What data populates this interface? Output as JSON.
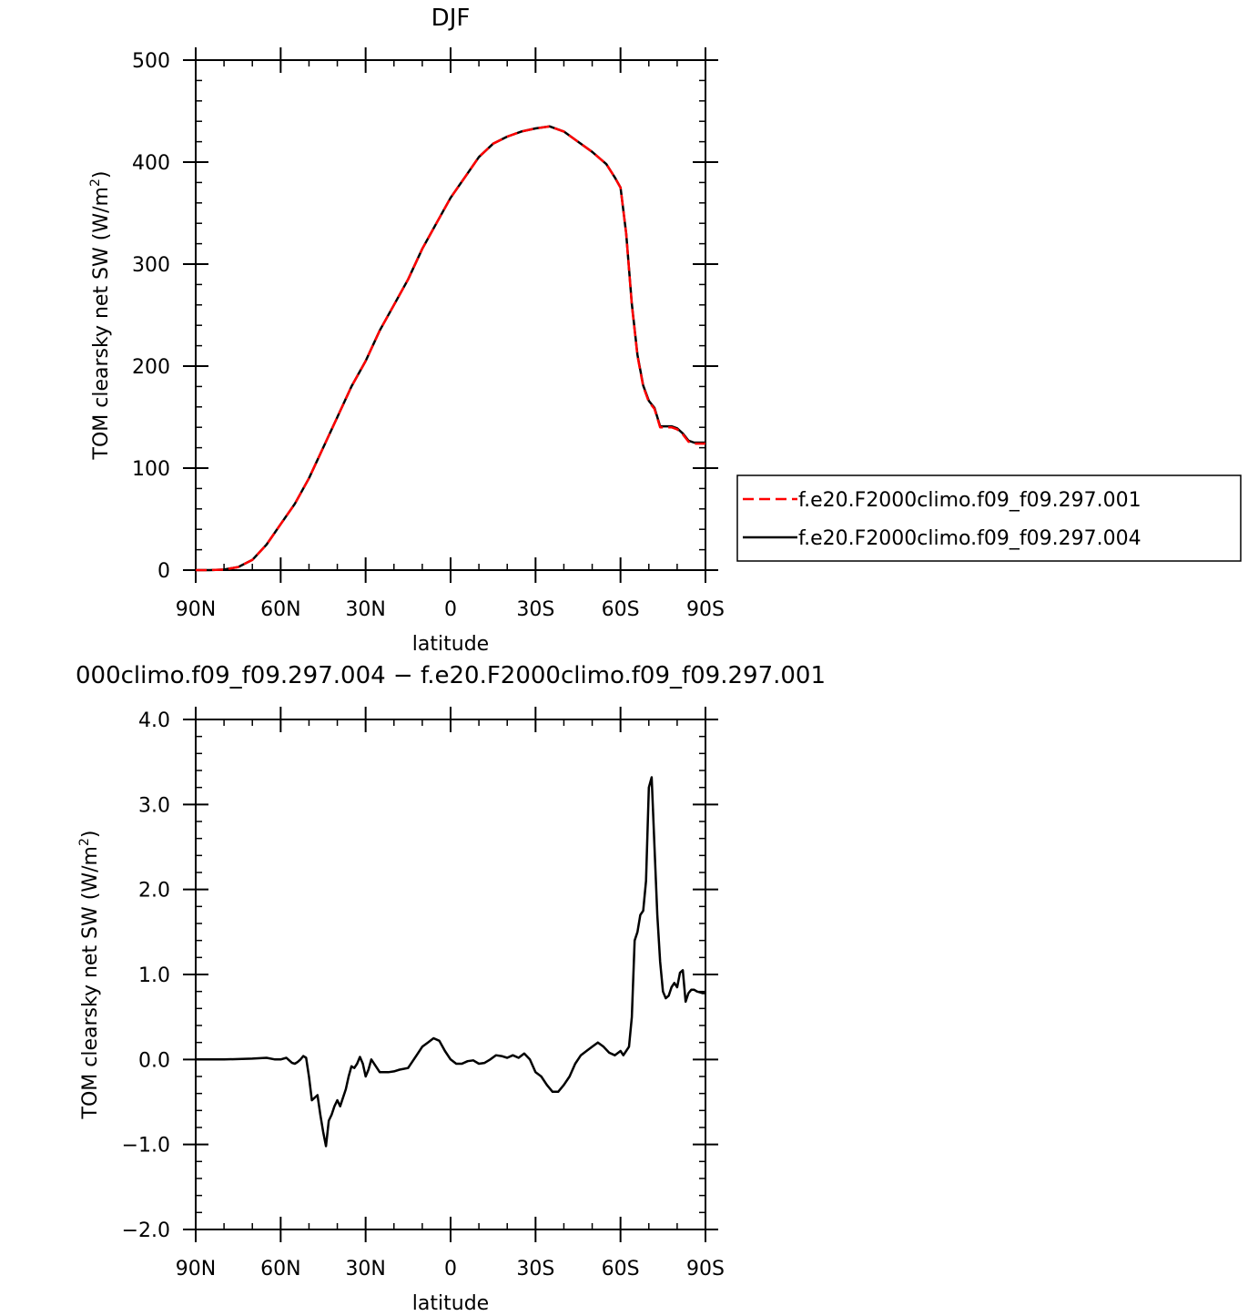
{
  "chart_data": [
    {
      "type": "line",
      "title": "DJF",
      "xlabel": "latitude",
      "ylabel": "TOM clearsky net SW (W/m",
      "ylabel_sup": "2",
      "ylabel_close": ")",
      "xlim": [
        90,
        -90
      ],
      "ylim": [
        0,
        500
      ],
      "x_ticks": [
        {
          "value": 90,
          "label": "90N"
        },
        {
          "value": 60,
          "label": "60N"
        },
        {
          "value": 30,
          "label": "30N"
        },
        {
          "value": 0,
          "label": "0"
        },
        {
          "value": -30,
          "label": "30S"
        },
        {
          "value": -60,
          "label": "60S"
        },
        {
          "value": -90,
          "label": "90S"
        }
      ],
      "y_ticks": [
        {
          "value": 0,
          "label": "0"
        },
        {
          "value": 100,
          "label": "100"
        },
        {
          "value": 200,
          "label": "200"
        },
        {
          "value": 300,
          "label": "300"
        },
        {
          "value": 400,
          "label": "400"
        },
        {
          "value": 500,
          "label": "500"
        }
      ],
      "legend_position": "right",
      "series": [
        {
          "name": "f.e20.F2000climo.f09_f09.297.001",
          "color": "#ff0000",
          "style": "dashed",
          "x": [
            90,
            85,
            80,
            75,
            70,
            65,
            60,
            55,
            50,
            45,
            40,
            35,
            30,
            25,
            20,
            15,
            10,
            5,
            0,
            -5,
            -10,
            -15,
            -20,
            -25,
            -30,
            -35,
            -40,
            -45,
            -50,
            -55,
            -58,
            -60,
            -62,
            -64,
            -66,
            -68,
            -70,
            -72,
            -74,
            -76,
            -78,
            -80,
            -82,
            -84,
            -86,
            -88,
            -90
          ],
          "values": [
            0,
            0,
            0.5,
            3,
            10,
            25,
            45,
            65,
            90,
            120,
            150,
            180,
            205,
            235,
            260,
            285,
            315,
            340,
            365,
            385,
            405,
            418,
            425,
            430,
            433,
            435,
            430,
            420,
            410,
            398,
            385,
            375,
            330,
            260,
            210,
            180,
            165,
            158,
            140,
            140,
            140,
            138,
            133,
            126,
            124,
            124,
            124
          ]
        },
        {
          "name": "f.e20.F2000climo.f09_f09.297.004",
          "color": "#000000",
          "style": "solid",
          "x": [
            90,
            85,
            80,
            75,
            70,
            65,
            60,
            55,
            50,
            45,
            40,
            35,
            30,
            25,
            20,
            15,
            10,
            5,
            0,
            -5,
            -10,
            -15,
            -20,
            -25,
            -30,
            -35,
            -40,
            -45,
            -50,
            -55,
            -58,
            -60,
            -62,
            -64,
            -66,
            -68,
            -70,
            -72,
            -74,
            -76,
            -78,
            -80,
            -82,
            -84,
            -86,
            -88,
            -90
          ],
          "values": [
            0,
            0,
            0.5,
            3,
            10,
            25,
            45,
            65,
            90,
            120,
            150,
            180,
            205,
            235,
            260,
            285,
            315,
            340,
            365,
            385,
            405,
            418,
            425,
            430,
            433,
            435,
            430,
            420,
            410,
            398,
            385,
            375,
            330,
            261,
            211,
            181,
            166,
            159,
            141,
            141,
            141,
            139,
            134,
            127,
            125,
            125,
            125
          ]
        }
      ]
    },
    {
      "type": "line",
      "title": "000climo.f09_f09.297.004 − f.e20.F2000climo.f09_f09.297.001",
      "xlabel": "latitude",
      "ylabel": "TOM clearsky net SW (W/m",
      "ylabel_sup": "2",
      "ylabel_close": ")",
      "xlim": [
        90,
        -90
      ],
      "ylim": [
        -2.0,
        4.0
      ],
      "x_ticks": [
        {
          "value": 90,
          "label": "90N"
        },
        {
          "value": 60,
          "label": "60N"
        },
        {
          "value": 30,
          "label": "30N"
        },
        {
          "value": 0,
          "label": "0"
        },
        {
          "value": -30,
          "label": "30S"
        },
        {
          "value": -60,
          "label": "60S"
        },
        {
          "value": -90,
          "label": "90S"
        }
      ],
      "y_ticks": [
        {
          "value": -2.0,
          "label": "−2.0"
        },
        {
          "value": -1.0,
          "label": "−1.0"
        },
        {
          "value": 0.0,
          "label": "0.0"
        },
        {
          "value": 1.0,
          "label": "1.0"
        },
        {
          "value": 2.0,
          "label": "2.0"
        },
        {
          "value": 3.0,
          "label": "3.0"
        },
        {
          "value": 4.0,
          "label": "4.0"
        }
      ],
      "series": [
        {
          "color": "#000000",
          "style": "solid",
          "x": [
            90,
            80,
            70,
            65,
            62,
            60,
            58,
            56,
            55,
            54,
            53,
            52,
            51,
            50,
            49,
            48,
            47,
            46,
            45,
            44,
            43,
            42,
            41,
            40,
            39,
            38,
            37,
            36,
            35,
            34,
            33,
            32,
            31,
            30,
            29,
            28,
            25,
            22,
            20,
            18,
            15,
            12,
            10,
            8,
            6,
            4,
            2,
            0,
            -2,
            -4,
            -6,
            -8,
            -10,
            -12,
            -14,
            -16,
            -18,
            -20,
            -22,
            -24,
            -26,
            -28,
            -30,
            -32,
            -34,
            -36,
            -38,
            -40,
            -42,
            -44,
            -46,
            -48,
            -50,
            -52,
            -54,
            -56,
            -58,
            -60,
            -61,
            -62,
            -63,
            -64,
            -65,
            -66,
            -67,
            -68,
            -69,
            -70,
            -71,
            -72,
            -73,
            -74,
            -75,
            -76,
            -77,
            -78,
            -79,
            -80,
            -81,
            -82,
            -83,
            -84,
            -85,
            -86,
            -87,
            -88,
            -89,
            -90
          ],
          "values": [
            0.0,
            0.0,
            0.01,
            0.02,
            0.0,
            0.0,
            0.02,
            -0.04,
            -0.05,
            -0.03,
            0.0,
            0.04,
            0.02,
            -0.2,
            -0.48,
            -0.45,
            -0.42,
            -0.65,
            -0.85,
            -1.02,
            -0.72,
            -0.65,
            -0.55,
            -0.48,
            -0.55,
            -0.45,
            -0.35,
            -0.2,
            -0.08,
            -0.1,
            -0.05,
            0.03,
            -0.05,
            -0.2,
            -0.12,
            0.0,
            -0.15,
            -0.15,
            -0.14,
            -0.12,
            -0.1,
            0.05,
            0.15,
            0.2,
            0.25,
            0.22,
            0.1,
            0.0,
            -0.05,
            -0.05,
            -0.02,
            -0.01,
            -0.05,
            -0.04,
            0.0,
            0.05,
            0.04,
            0.02,
            0.05,
            0.02,
            0.07,
            0.0,
            -0.15,
            -0.2,
            -0.3,
            -0.38,
            -0.38,
            -0.3,
            -0.2,
            -0.05,
            0.05,
            0.1,
            0.15,
            0.2,
            0.15,
            0.08,
            0.05,
            0.1,
            0.05,
            0.1,
            0.15,
            0.5,
            1.4,
            1.5,
            1.7,
            1.75,
            2.1,
            3.2,
            3.32,
            2.5,
            1.7,
            1.15,
            0.8,
            0.72,
            0.75,
            0.85,
            0.9,
            0.85,
            1.02,
            1.05,
            0.68,
            0.78,
            0.82,
            0.82,
            0.8,
            0.79,
            0.78,
            0.78
          ]
        }
      ]
    }
  ]
}
